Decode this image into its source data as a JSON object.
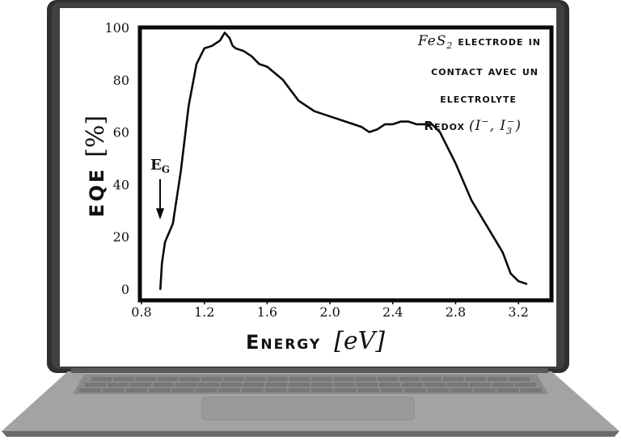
{
  "chart_data": {
    "type": "line",
    "title": "",
    "xlabel_word": "Energy",
    "xlabel_unit": "[eV]",
    "ylabel_word": "EQE",
    "ylabel_unit": "[%]",
    "xlim": [
      0.8,
      3.4
    ],
    "ylim": [
      0,
      100
    ],
    "x_ticks": [
      "0.8",
      "1.2",
      "1.6",
      "2.0",
      "2.4",
      "2.8",
      "3.2"
    ],
    "y_ticks": [
      "0",
      "20",
      "40",
      "60",
      "80",
      "100"
    ],
    "grid": false,
    "series": [
      {
        "x": [
          0.92,
          0.93,
          0.95,
          1.0,
          1.05,
          1.1,
          1.15,
          1.2,
          1.25,
          1.3,
          1.33,
          1.36,
          1.38,
          1.4,
          1.45,
          1.5,
          1.55,
          1.6,
          1.7,
          1.8,
          1.9,
          2.0,
          2.1,
          2.2,
          2.25,
          2.3,
          2.35,
          2.4,
          2.45,
          2.5,
          2.55,
          2.6,
          2.65,
          2.7,
          2.8,
          2.9,
          3.0,
          3.1,
          3.15,
          3.2,
          3.25
        ],
        "y": [
          0,
          10,
          18,
          25,
          45,
          70,
          86,
          92,
          93,
          95,
          98,
          96,
          93,
          92,
          91,
          89,
          86,
          85,
          80,
          72,
          68,
          66,
          64,
          62,
          60,
          61,
          63,
          63,
          64,
          64,
          63,
          63,
          63,
          60,
          48,
          34,
          24,
          14,
          6,
          3,
          2
        ]
      }
    ],
    "annotations": {
      "eg_label": "E",
      "eg_sub": "G",
      "eg_x": 0.95,
      "legend_line1_a": "FeS",
      "legend_line1_sub": "2",
      "legend_line1_b": "electrode in",
      "legend_line2": "contact avec un",
      "legend_line3": "electrolyte",
      "legend_line4_a": "Redox",
      "legend_line4_b": "(I",
      "legend_line4_sup1": "−",
      "legend_line4_c": ", I",
      "legend_line4_sub": "3",
      "legend_line4_sup2": "−",
      "legend_line4_d": ")"
    }
  }
}
